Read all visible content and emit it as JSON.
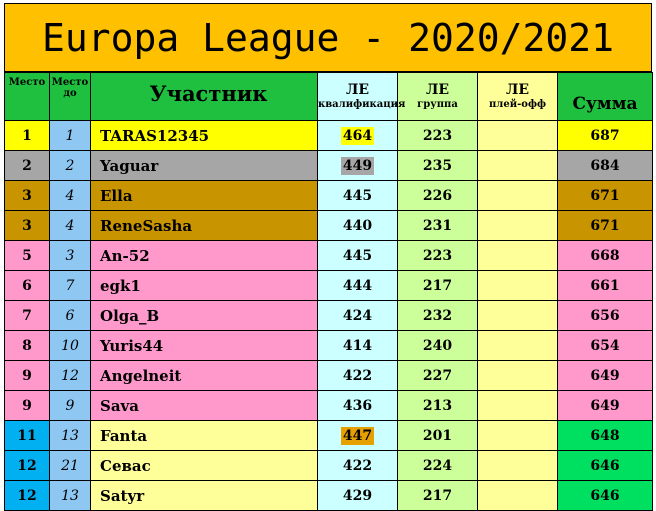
{
  "title": "Europa League - 2020/2021",
  "headers": {
    "rank": "Место",
    "prev_rank": "Место до",
    "participant": "Участник",
    "qual_top": "ЛЕ",
    "qual_bottom": "квалификация",
    "group_top": "ЛЕ",
    "group_bottom": "группа",
    "playoff_top": "ЛЕ",
    "playoff_bottom": "плей-офф",
    "sum": "Сумма"
  },
  "rows": [
    {
      "rank": "1",
      "prev": "1",
      "name": "TARAS12345",
      "qual": "464",
      "group": "223",
      "playoff": "",
      "sum": "687",
      "row_color": "#ffff00",
      "sum_color": "#ffff00",
      "qual_chip": "#ffff00"
    },
    {
      "rank": "2",
      "prev": "2",
      "name": "Yaguar",
      "qual": "449",
      "group": "235",
      "playoff": "",
      "sum": "684",
      "row_color": "#a6a6a6",
      "sum_color": "#a6a6a6",
      "qual_chip": "#a6a6a6"
    },
    {
      "rank": "3",
      "prev": "4",
      "name": "Ella",
      "qual": "445",
      "group": "226",
      "playoff": "",
      "sum": "671",
      "row_color": "#c89400",
      "sum_color": "#c89400",
      "qual_chip": ""
    },
    {
      "rank": "3",
      "prev": "4",
      "name": "ReneSasha",
      "qual": "440",
      "group": "231",
      "playoff": "",
      "sum": "671",
      "row_color": "#c89400",
      "sum_color": "#c89400",
      "qual_chip": ""
    },
    {
      "rank": "5",
      "prev": "3",
      "name": "An-52",
      "qual": "445",
      "group": "223",
      "playoff": "",
      "sum": "668",
      "row_color": "#ff99cc",
      "sum_color": "#ff99cc",
      "qual_chip": ""
    },
    {
      "rank": "6",
      "prev": "7",
      "name": "egk1",
      "qual": "444",
      "group": "217",
      "playoff": "",
      "sum": "661",
      "row_color": "#ff99cc",
      "sum_color": "#ff99cc",
      "qual_chip": ""
    },
    {
      "rank": "7",
      "prev": "6",
      "name": "Olga_B",
      "qual": "424",
      "group": "232",
      "playoff": "",
      "sum": "656",
      "row_color": "#ff99cc",
      "sum_color": "#ff99cc",
      "qual_chip": ""
    },
    {
      "rank": "8",
      "prev": "10",
      "name": "Yuris44",
      "qual": "414",
      "group": "240",
      "playoff": "",
      "sum": "654",
      "row_color": "#ff99cc",
      "sum_color": "#ff99cc",
      "qual_chip": ""
    },
    {
      "rank": "9",
      "prev": "12",
      "name": "Angelneit",
      "qual": "422",
      "group": "227",
      "playoff": "",
      "sum": "649",
      "row_color": "#ff99cc",
      "sum_color": "#ff99cc",
      "qual_chip": ""
    },
    {
      "rank": "9",
      "prev": "9",
      "name": "Sava",
      "qual": "436",
      "group": "213",
      "playoff": "",
      "sum": "649",
      "row_color": "#ff99cc",
      "sum_color": "#ff99cc",
      "qual_chip": ""
    },
    {
      "rank": "11",
      "prev": "13",
      "name": "Fanta",
      "qual": "447",
      "group": "201",
      "playoff": "",
      "sum": "648",
      "row_color": "#ffff99",
      "sum_color": "#00e060",
      "qual_chip": "#e6a000",
      "rank_color": "#00b0f0"
    },
    {
      "rank": "12",
      "prev": "21",
      "name": "Севас",
      "qual": "422",
      "group": "224",
      "playoff": "",
      "sum": "646",
      "row_color": "#ffff99",
      "sum_color": "#00e060",
      "qual_chip": "",
      "rank_color": "#00b0f0"
    },
    {
      "rank": "12",
      "prev": "13",
      "name": "Satyr",
      "qual": "429",
      "group": "217",
      "playoff": "",
      "sum": "646",
      "row_color": "#ffff99",
      "sum_color": "#00e060",
      "qual_chip": "",
      "rank_color": "#00b0f0"
    }
  ]
}
